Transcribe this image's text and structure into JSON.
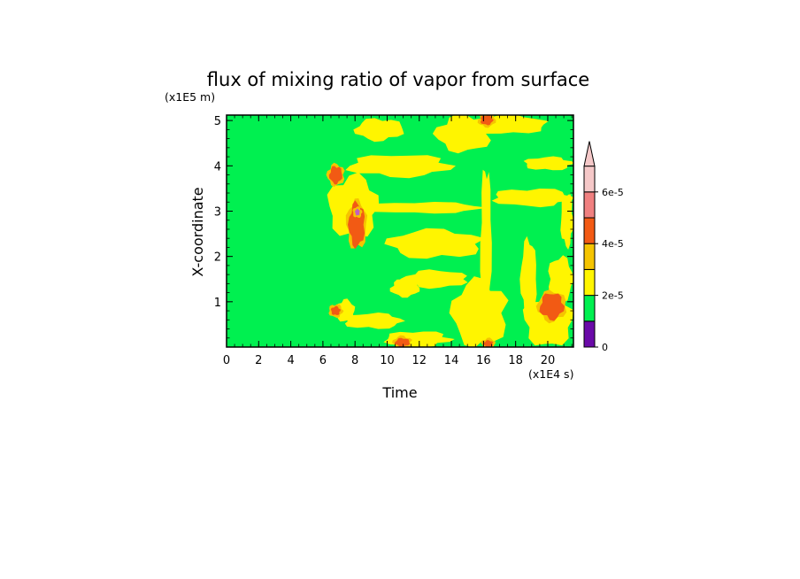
{
  "chart_data": {
    "type": "heatmap",
    "title": "flux of mixing ratio of vapor from surface",
    "xlabel": "Time",
    "ylabel": "X-coordinate",
    "x_unit_label": "(x1E4 s)",
    "y_unit_label": "(x1E5 m)",
    "xlim": [
      0,
      21.6
    ],
    "ylim": [
      0,
      5.12
    ],
    "x_ticks": [
      "0",
      "2",
      "4",
      "6",
      "8",
      "10",
      "12",
      "14",
      "16",
      "18",
      "20"
    ],
    "y_ticks": [
      "1",
      "2",
      "3",
      "4",
      "5"
    ],
    "colorbar": {
      "levels": [
        0,
        1e-05,
        2e-05,
        3e-05,
        4e-05,
        5e-05,
        6e-05,
        7e-05
      ],
      "tick_labels": [
        "0",
        "2e-5",
        "4e-5",
        "6e-5"
      ],
      "tick_values": [
        0,
        2e-05,
        4e-05,
        6e-05
      ],
      "colors": [
        "#6a0aa8",
        "#00f050",
        "#fff500",
        "#f5c400",
        "#f25a14",
        "#f08080",
        "#f5c8c8"
      ],
      "extend": "max"
    },
    "background_value_range": [
      1e-05,
      2e-05
    ],
    "yellow_regions": [
      {
        "x": [
          6.8,
          8.0
        ],
        "y": [
          0.55,
          1.05
        ]
      },
      {
        "x": [
          7.2,
          11.0
        ],
        "y": [
          0.4,
          0.75
        ]
      },
      {
        "x": [
          9.8,
          14.0
        ],
        "y": [
          0.0,
          0.35
        ]
      },
      {
        "x": [
          10.2,
          12.0
        ],
        "y": [
          1.1,
          1.5
        ]
      },
      {
        "x": [
          11.0,
          15.0
        ],
        "y": [
          1.3,
          1.7
        ]
      },
      {
        "x": [
          10.0,
          16.0
        ],
        "y": [
          1.95,
          2.6
        ]
      },
      {
        "x": [
          6.3,
          9.5
        ],
        "y": [
          2.4,
          3.8
        ]
      },
      {
        "x": [
          8.5,
          16.0
        ],
        "y": [
          2.95,
          3.2
        ]
      },
      {
        "x": [
          7.5,
          14.0
        ],
        "y": [
          3.75,
          4.25
        ]
      },
      {
        "x": [
          8.0,
          11.0
        ],
        "y": [
          4.55,
          5.05
        ]
      },
      {
        "x": [
          13.0,
          16.5
        ],
        "y": [
          4.3,
          5.12
        ]
      },
      {
        "x": [
          15.0,
          20.0
        ],
        "y": [
          4.7,
          5.12
        ]
      },
      {
        "x": [
          18.5,
          21.6
        ],
        "y": [
          3.9,
          4.2
        ]
      },
      {
        "x": [
          16.5,
          21.6
        ],
        "y": [
          3.1,
          3.5
        ]
      },
      {
        "x": [
          15.8,
          16.5
        ],
        "y": [
          0.6,
          4.0
        ]
      },
      {
        "x": [
          18.3,
          19.3
        ],
        "y": [
          0.6,
          2.4
        ]
      },
      {
        "x": [
          14.0,
          17.5
        ],
        "y": [
          0.0,
          1.5
        ]
      },
      {
        "x": [
          18.5,
          21.6
        ],
        "y": [
          0.0,
          1.2
        ]
      },
      {
        "x": [
          20.0,
          21.6
        ],
        "y": [
          1.0,
          2.0
        ]
      },
      {
        "x": [
          20.8,
          21.6
        ],
        "y": [
          2.2,
          3.4
        ]
      }
    ],
    "high_regions": [
      {
        "x": [
          6.4,
          7.2
        ],
        "y": [
          3.6,
          4.0
        ],
        "level": "red"
      },
      {
        "x": [
          7.6,
          8.6
        ],
        "y": [
          2.2,
          3.2
        ],
        "level": "red"
      },
      {
        "x": [
          8.0,
          8.3
        ],
        "y": [
          2.9,
          3.05
        ],
        "level": "violet"
      },
      {
        "x": [
          6.5,
          7.1
        ],
        "y": [
          0.7,
          0.9
        ],
        "level": "red"
      },
      {
        "x": [
          15.8,
          16.6
        ],
        "y": [
          4.9,
          5.12
        ],
        "level": "red"
      },
      {
        "x": [
          19.5,
          21.0
        ],
        "y": [
          0.6,
          1.2
        ],
        "level": "red"
      },
      {
        "x": [
          10.5,
          11.4
        ],
        "y": [
          0.0,
          0.2
        ],
        "level": "red"
      },
      {
        "x": [
          16.0,
          16.6
        ],
        "y": [
          0.0,
          0.15
        ],
        "level": "red"
      }
    ]
  }
}
